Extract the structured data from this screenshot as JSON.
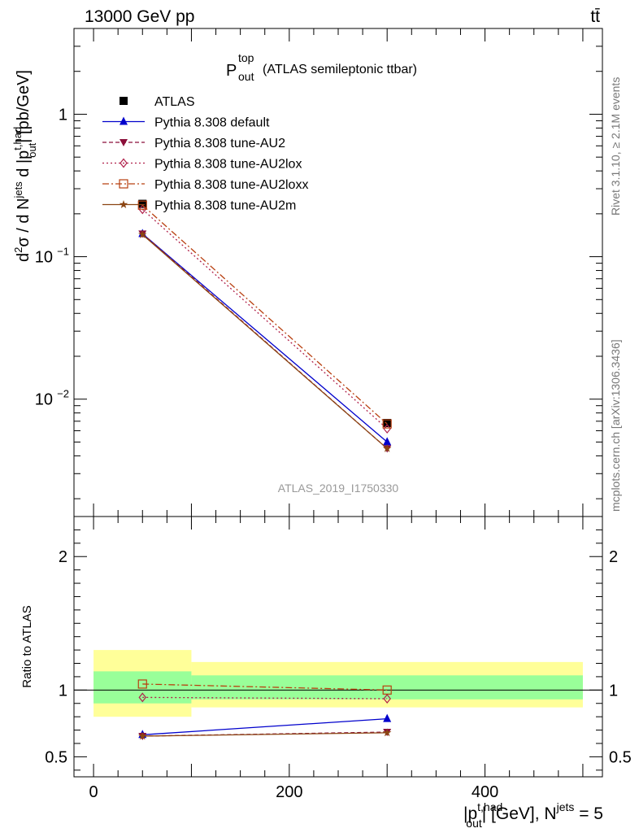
{
  "header": {
    "left": "13000 GeV pp",
    "right": "tt̄"
  },
  "side_labels": {
    "rivet": "Rivet 3.1.10, ≥ 2.1M events",
    "mcplots": "mcplots.cern.ch [arXiv:1306.3436]"
  },
  "chart_data": [
    {
      "type": "line",
      "panel": "main",
      "title_main": "P",
      "title_sup": "top",
      "title_sub": "out",
      "title_rest": "(ATLAS semileptonic ttbar)",
      "watermark": "ATLAS_2019_I1750330",
      "ylabel_parts": [
        "d",
        "2",
        "σ / d N",
        "jets",
        " d |p",
        "t,had",
        "out",
        "| [pb/GeV]"
      ],
      "yscale": "log",
      "ylim": [
        0.0015,
        4.0
      ],
      "xlim": [
        -20,
        520
      ],
      "yticks": [
        {
          "value": 1,
          "base": "1",
          "exp": ""
        },
        {
          "value": 0.1,
          "base": "10",
          "exp": "−1"
        },
        {
          "value": 0.01,
          "base": "10",
          "exp": "−2"
        }
      ],
      "legend_position": "top-left",
      "series": [
        {
          "name": "ATLAS",
          "color": "#000000",
          "marker": "square-filled",
          "dash": "none",
          "x": [
            50,
            300
          ],
          "y": [
            0.235,
            0.0068
          ]
        },
        {
          "name": "Pythia 8.308 default",
          "color": "#0000cc",
          "marker": "triangle-up-filled",
          "dash": "solid",
          "x": [
            50,
            300
          ],
          "y": [
            0.145,
            0.005
          ]
        },
        {
          "name": "Pythia 8.308 tune-AU2",
          "color": "#8b0f3a",
          "marker": "triangle-down-filled",
          "dash": "5,3",
          "x": [
            50,
            300
          ],
          "y": [
            0.145,
            0.0045
          ]
        },
        {
          "name": "Pythia 8.308 tune-AU2lox",
          "color": "#b0204a",
          "marker": "diamond-open",
          "dash": "2,3",
          "x": [
            50,
            300
          ],
          "y": [
            0.215,
            0.0062
          ]
        },
        {
          "name": "Pythia 8.308 tune-AU2loxx",
          "color": "#b84010",
          "marker": "square-open",
          "dash": "8,3,2,3",
          "x": [
            50,
            300
          ],
          "y": [
            0.23,
            0.0067
          ]
        },
        {
          "name": "Pythia 8.308 tune-AU2m",
          "color": "#8b4513",
          "marker": "star-filled",
          "dash": "solid",
          "x": [
            50,
            300
          ],
          "y": [
            0.143,
            0.0045
          ]
        }
      ]
    },
    {
      "type": "line",
      "panel": "ratio",
      "ylabel": "Ratio to ATLAS",
      "yscale": "linear",
      "ylim": [
        0.35,
        2.3
      ],
      "xlim": [
        -20,
        520
      ],
      "yticks": [
        0.5,
        1,
        2
      ],
      "xticks": [
        0,
        200,
        400
      ],
      "xlabel_parts": [
        "|p",
        "t,had",
        "out",
        "| [GeV], N",
        "jets",
        " = 5"
      ],
      "reference_line": 1,
      "bands": [
        {
          "x": [
            0,
            100
          ],
          "inner": [
            0.9,
            1.14
          ],
          "outer": [
            0.8,
            1.3
          ]
        },
        {
          "x": [
            100,
            500
          ],
          "inner": [
            0.93,
            1.11
          ],
          "outer": [
            0.87,
            1.21
          ]
        }
      ],
      "band_colors": {
        "inner": "#99ff99",
        "outer": "#ffff99"
      },
      "series": [
        {
          "name": "Pythia 8.308 default",
          "x": [
            50,
            300
          ],
          "y": [
            0.665,
            0.785
          ]
        },
        {
          "name": "Pythia 8.308 tune-AU2",
          "x": [
            50,
            300
          ],
          "y": [
            0.655,
            0.685
          ]
        },
        {
          "name": "Pythia 8.308 tune-AU2lox",
          "x": [
            50,
            300
          ],
          "y": [
            0.945,
            0.935
          ]
        },
        {
          "name": "Pythia 8.308 tune-AU2loxx",
          "x": [
            50,
            300
          ],
          "y": [
            1.045,
            1.0
          ]
        },
        {
          "name": "Pythia 8.308 tune-AU2m",
          "x": [
            50,
            300
          ],
          "y": [
            0.655,
            0.68
          ]
        }
      ]
    }
  ]
}
